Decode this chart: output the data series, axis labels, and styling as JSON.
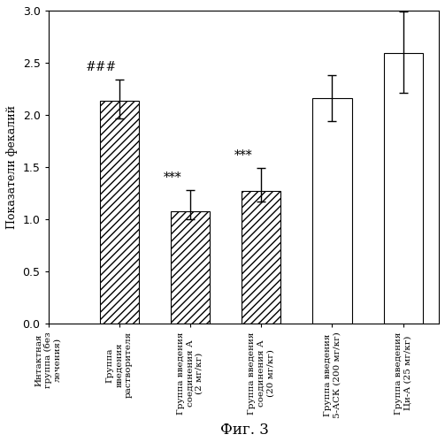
{
  "categories": [
    "Интактная\nгруппа (без\nлечения)",
    "Группа\nвведения\nрастворителя",
    "Группа введения\nсоединения А\n(2 мг/кг)",
    "Группа введения\nсоединения А\n(20 мг/кг)",
    "Группа введения\n5-АСК (200 мг/кг)",
    "Группа введения\nЦи-А (25 мг/кг)"
  ],
  "values": [
    0.0,
    2.14,
    1.08,
    1.27,
    2.16,
    2.59
  ],
  "errors_up": [
    0.0,
    0.2,
    0.2,
    0.22,
    0.22,
    0.4
  ],
  "errors_dn": [
    0.0,
    0.17,
    0.08,
    0.1,
    0.22,
    0.38
  ],
  "bar_styles": [
    "empty",
    "hatch",
    "hatch",
    "hatch",
    "open",
    "open"
  ],
  "hatch_pattern": "////",
  "ylabel": "Показатели фекалий",
  "fig_label": "Фиг. 3",
  "ylim": [
    0,
    3.0
  ],
  "yticks": [
    0,
    0.5,
    1.0,
    1.5,
    2.0,
    2.5,
    3.0
  ],
  "annotations": [
    {
      "bar_idx": 1,
      "text": "###"
    },
    {
      "bar_idx": 2,
      "text": "***"
    },
    {
      "bar_idx": 3,
      "text": "***"
    }
  ],
  "bar_edge_color": "#000000",
  "background_color": "#ffffff"
}
